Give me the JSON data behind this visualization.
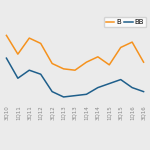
{
  "x_labels": [
    "3Q10",
    "1Q11",
    "3Q11",
    "1Q12",
    "3Q12",
    "1Q13",
    "3Q13",
    "1Q14",
    "3Q14",
    "1Q15",
    "3Q15",
    "1Q16",
    "3Q16"
  ],
  "B_values": [
    5.2,
    3.8,
    5.0,
    4.6,
    3.1,
    2.7,
    2.6,
    3.2,
    3.6,
    3.0,
    4.3,
    4.7,
    3.2
  ],
  "BB_values": [
    3.5,
    2.0,
    2.6,
    2.3,
    1.0,
    0.6,
    0.7,
    0.8,
    1.3,
    1.6,
    1.9,
    1.3,
    1.0
  ],
  "B_color": "#f5921e",
  "BB_color": "#1f5f8b",
  "background": "#ebebeb",
  "grid_color": "#ffffff",
  "tick_fontsize": 4.0,
  "legend_fontsize": 5.0,
  "linewidth": 1.1
}
